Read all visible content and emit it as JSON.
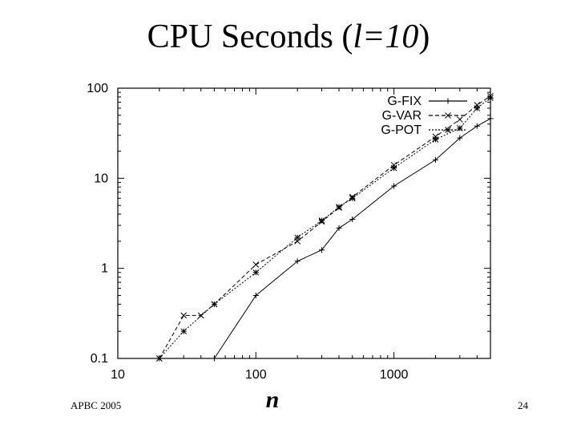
{
  "title": {
    "main": "CPU Seconds (",
    "var": "l",
    "eq": "=10",
    "close": ")"
  },
  "footer": {
    "left": "APBC 2005",
    "page": "24"
  },
  "chart_data": {
    "type": "line",
    "xscale": "log",
    "yscale": "log",
    "xlim": [
      10,
      5000
    ],
    "ylim": [
      0.1,
      100
    ],
    "x_ticks": [
      "10",
      "100",
      "1000"
    ],
    "y_ticks": [
      "0.1",
      "1",
      "10",
      "100"
    ],
    "xlabel": "n",
    "ylabel": "",
    "legend_position": "top-right",
    "series": [
      {
        "name": "G-FIX",
        "line_style": "solid",
        "marker": "plus",
        "points": [
          [
            50,
            0.1
          ],
          [
            100,
            0.5
          ],
          [
            200,
            1.2
          ],
          [
            300,
            1.6
          ],
          [
            400,
            2.8
          ],
          [
            500,
            3.5
          ],
          [
            1000,
            8.2
          ],
          [
            2000,
            16
          ],
          [
            3000,
            28
          ],
          [
            4000,
            38
          ],
          [
            5000,
            46
          ]
        ]
      },
      {
        "name": "G-VAR",
        "line_style": "dashed",
        "marker": "x",
        "points": [
          [
            20,
            0.1
          ],
          [
            30,
            0.3
          ],
          [
            40,
            0.3
          ],
          [
            50,
            0.4
          ],
          [
            100,
            1.1
          ],
          [
            200,
            2.0
          ],
          [
            300,
            3.3
          ],
          [
            400,
            4.7
          ],
          [
            500,
            6.2
          ],
          [
            1000,
            14
          ],
          [
            2000,
            29
          ],
          [
            3000,
            45
          ],
          [
            4000,
            65
          ],
          [
            5000,
            82
          ]
        ]
      },
      {
        "name": "G-POT",
        "line_style": "dotted",
        "marker": "star",
        "points": [
          [
            20,
            0.1
          ],
          [
            30,
            0.2
          ],
          [
            50,
            0.4
          ],
          [
            100,
            0.9
          ],
          [
            200,
            2.2
          ],
          [
            300,
            3.4
          ],
          [
            400,
            4.8
          ],
          [
            500,
            6.0
          ],
          [
            1000,
            13
          ],
          [
            2000,
            27
          ],
          [
            3000,
            36
          ],
          [
            4000,
            60
          ],
          [
            5000,
            78
          ]
        ]
      }
    ]
  }
}
